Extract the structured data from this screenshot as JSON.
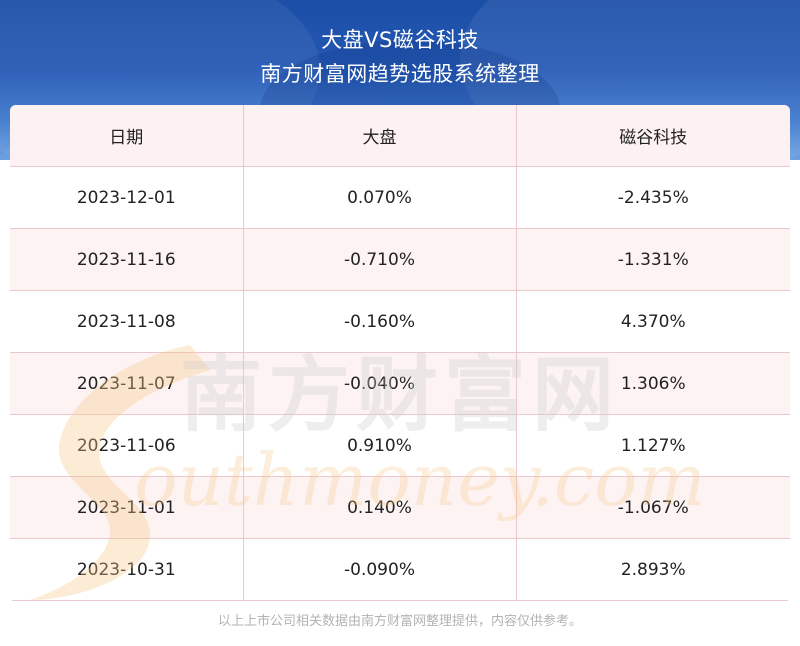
{
  "header": {
    "title": "大盘VS磁谷科技",
    "subtitle": "南方财富网趋势选股系统整理"
  },
  "table": {
    "columns": [
      "日期",
      "大盘",
      "磁谷科技"
    ],
    "rows": [
      [
        "2023-12-01",
        "0.070%",
        "-2.435%"
      ],
      [
        "2023-11-16",
        "-0.710%",
        "-1.331%"
      ],
      [
        "2023-11-08",
        "-0.160%",
        "4.370%"
      ],
      [
        "2023-11-07",
        "-0.040%",
        "1.306%"
      ],
      [
        "2023-11-06",
        "0.910%",
        "1.127%"
      ],
      [
        "2023-11-01",
        "0.140%",
        "-1.067%"
      ],
      [
        "2023-10-31",
        "-0.090%",
        "2.893%"
      ]
    ]
  },
  "watermark": {
    "cn": "南方财富网",
    "en": "outhmoney.com"
  },
  "footer": {
    "note": "以上上市公司相关数据由南方财富网整理提供，内容仅供参考。"
  },
  "colors": {
    "header_blue": "#2459b5",
    "grid_line": "#e9c7cc",
    "alt_row": "#fdf3f3"
  }
}
